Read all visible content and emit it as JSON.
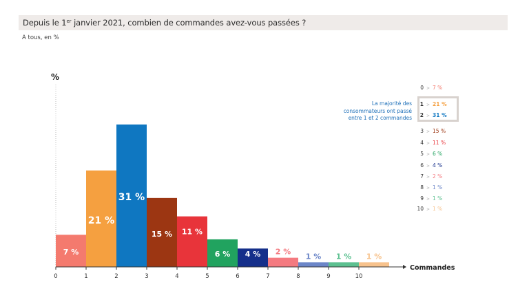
{
  "header": {
    "question_prefix": "Depuis le 1",
    "question_sup": "er",
    "question_suffix": " janvier 2021, combien de commandes avez-vous passées ?"
  },
  "subtitle": "A tous, en %",
  "callout": "La majorité des consommateurs ont passé entre 1 et 2 commandes",
  "legend": [
    {
      "n": "0",
      "v": "7 %",
      "color": "#f47a6e",
      "bold": false
    },
    {
      "n": "1",
      "v": "21 %",
      "color": "#f5a040",
      "bold": true
    },
    {
      "n": "2",
      "v": "31 %",
      "color": "#0f77c1",
      "bold": true
    },
    {
      "n": "3",
      "v": "15 %",
      "color": "#9c3612",
      "bold": false
    },
    {
      "n": "4",
      "v": "11 %",
      "color": "#e8343a",
      "bold": false
    },
    {
      "n": "5",
      "v": "6 %",
      "color": "#21a35f",
      "bold": false
    },
    {
      "n": "6",
      "v": "4 %",
      "color": "#152f8a",
      "bold": false
    },
    {
      "n": "7",
      "v": "2 %",
      "color": "#f47a80",
      "bold": false
    },
    {
      "n": "8",
      "v": "1 %",
      "color": "#6c86c8",
      "bold": false
    },
    {
      "n": "9",
      "v": "1 %",
      "color": "#5cc090",
      "bold": false
    },
    {
      "n": "10",
      "v": "1 %",
      "color": "#f7c28c",
      "bold": false
    }
  ],
  "chart_data": {
    "type": "bar",
    "title": "Depuis le 1er janvier 2021, combien de commandes avez-vous passées ?",
    "subtitle": "A tous, en %",
    "xlabel": "Commandes",
    "ylabel": "%",
    "categories": [
      "0",
      "1",
      "2",
      "3",
      "4",
      "5",
      "6",
      "7",
      "8",
      "9",
      "10"
    ],
    "values": [
      7,
      21,
      31,
      15,
      11,
      6,
      4,
      2,
      1,
      1,
      1
    ],
    "labels": [
      "7 %",
      "21 %",
      "31 %",
      "15 %",
      "11 %",
      "6 %",
      "4 %",
      "2 %",
      "1 %",
      "1 %",
      "1 %"
    ],
    "colors": [
      "#f47a6e",
      "#f5a040",
      "#0f77c1",
      "#9c3612",
      "#e8343a",
      "#21a35f",
      "#152f8a",
      "#f47a80",
      "#6c86c8",
      "#5cc090",
      "#f7c28c"
    ],
    "label_inside": [
      true,
      true,
      true,
      true,
      true,
      true,
      true,
      false,
      false,
      false,
      false
    ],
    "label_bold_large": [
      false,
      true,
      true,
      false,
      false,
      false,
      false,
      false,
      false,
      false,
      false
    ],
    "tick_labels": [
      "0",
      "1",
      "2",
      "3",
      "4",
      "5",
      "6",
      "7",
      "8",
      "9",
      "10"
    ],
    "grid": false,
    "legend_position": "right"
  }
}
